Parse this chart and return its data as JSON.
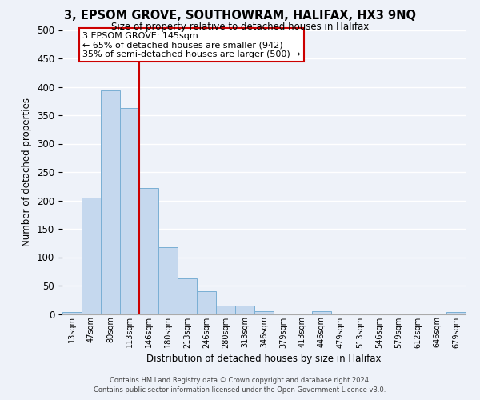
{
  "title": "3, EPSOM GROVE, SOUTHOWRAM, HALIFAX, HX3 9NQ",
  "subtitle": "Size of property relative to detached houses in Halifax",
  "xlabel": "Distribution of detached houses by size in Halifax",
  "ylabel": "Number of detached properties",
  "bin_labels": [
    "13sqm",
    "47sqm",
    "80sqm",
    "113sqm",
    "146sqm",
    "180sqm",
    "213sqm",
    "246sqm",
    "280sqm",
    "313sqm",
    "346sqm",
    "379sqm",
    "413sqm",
    "446sqm",
    "479sqm",
    "513sqm",
    "546sqm",
    "579sqm",
    "612sqm",
    "646sqm",
    "679sqm"
  ],
  "bar_values": [
    3,
    205,
    393,
    362,
    222,
    118,
    63,
    40,
    15,
    15,
    5,
    0,
    0,
    5,
    0,
    0,
    0,
    0,
    0,
    0,
    3
  ],
  "bar_color": "#c5d8ee",
  "bar_edge_color": "#7aafd4",
  "vline_color": "#cc0000",
  "annotation_title": "3 EPSOM GROVE: 145sqm",
  "annotation_line1": "← 65% of detached houses are smaller (942)",
  "annotation_line2": "35% of semi-detached houses are larger (500) →",
  "annotation_box_color": "#ffffff",
  "annotation_box_edge": "#cc0000",
  "ylim": [
    0,
    500
  ],
  "yticks": [
    0,
    50,
    100,
    150,
    200,
    250,
    300,
    350,
    400,
    450,
    500
  ],
  "footer1": "Contains HM Land Registry data © Crown copyright and database right 2024.",
  "footer2": "Contains public sector information licensed under the Open Government Licence v3.0.",
  "bg_color": "#eef2f9"
}
